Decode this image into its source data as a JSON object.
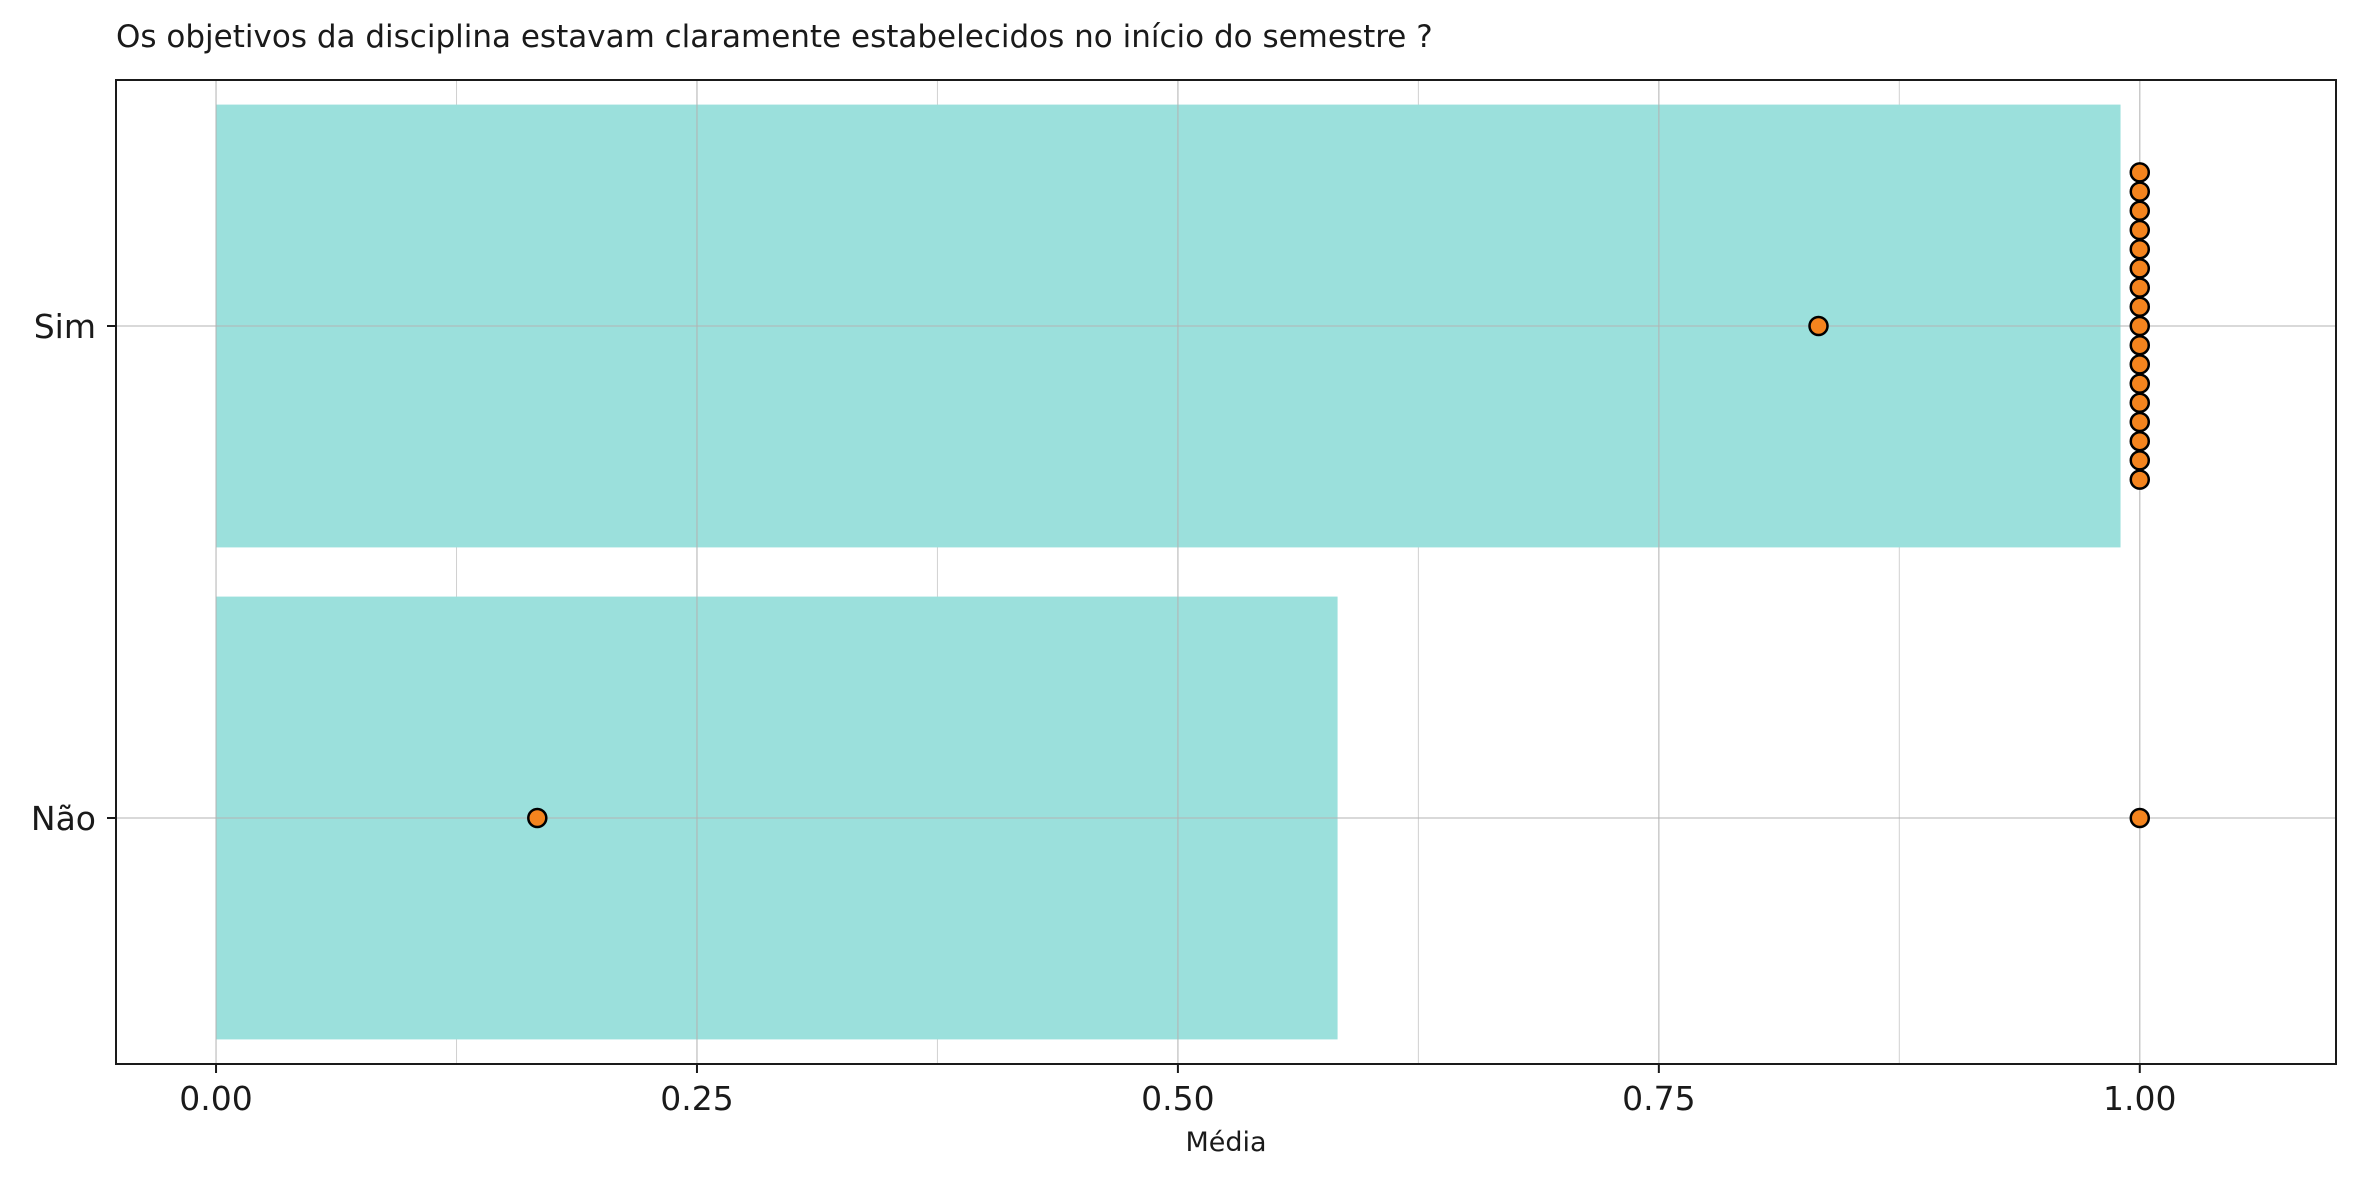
{
  "chart_data": {
    "type": "bar",
    "orientation": "horizontal",
    "title": "Os objetivos da disciplina estavam claramente estabelecidos no início do semestre ?",
    "xlabel": "Média",
    "ylabel": "",
    "xlim": [
      -0.052,
      1.102
    ],
    "x_ticks": [
      0.0,
      0.25,
      0.5,
      0.75,
      1.0
    ],
    "x_tick_labels": [
      "0.00",
      "0.25",
      "0.50",
      "0.75",
      "1.00"
    ],
    "x_minor_ticks": [
      0.125,
      0.375,
      0.625,
      0.875
    ],
    "categories": [
      "Sim",
      "Não"
    ],
    "values": [
      0.99,
      0.583
    ],
    "points": [
      {
        "category": "Sim",
        "x": 0.833,
        "offset": 0
      },
      {
        "category": "Sim",
        "x": 1.0,
        "offset": 8
      },
      {
        "category": "Sim",
        "x": 1.0,
        "offset": 7
      },
      {
        "category": "Sim",
        "x": 1.0,
        "offset": 6
      },
      {
        "category": "Sim",
        "x": 1.0,
        "offset": 5
      },
      {
        "category": "Sim",
        "x": 1.0,
        "offset": 4
      },
      {
        "category": "Sim",
        "x": 1.0,
        "offset": 3
      },
      {
        "category": "Sim",
        "x": 1.0,
        "offset": 2
      },
      {
        "category": "Sim",
        "x": 1.0,
        "offset": 1
      },
      {
        "category": "Sim",
        "x": 1.0,
        "offset": 0
      },
      {
        "category": "Sim",
        "x": 1.0,
        "offset": -1
      },
      {
        "category": "Sim",
        "x": 1.0,
        "offset": -2
      },
      {
        "category": "Sim",
        "x": 1.0,
        "offset": -3
      },
      {
        "category": "Sim",
        "x": 1.0,
        "offset": -4
      },
      {
        "category": "Sim",
        "x": 1.0,
        "offset": -5
      },
      {
        "category": "Sim",
        "x": 1.0,
        "offset": -6
      },
      {
        "category": "Sim",
        "x": 1.0,
        "offset": -7
      },
      {
        "category": "Sim",
        "x": 1.0,
        "offset": -8
      },
      {
        "category": "Não",
        "x": 0.167,
        "offset": 0
      },
      {
        "category": "Não",
        "x": 1.0,
        "offset": 0
      }
    ],
    "grid": true,
    "legend": "none",
    "colors": {
      "bar": "#9be0dc",
      "point_fill": "#f4841e",
      "point_stroke": "#000000",
      "grid": "#b3b3b3",
      "frame": "#1a1a1a"
    }
  }
}
